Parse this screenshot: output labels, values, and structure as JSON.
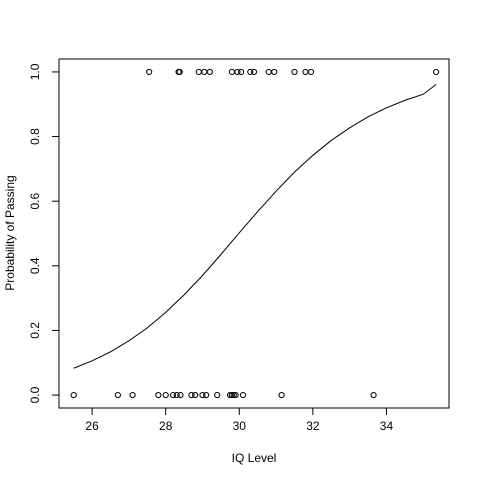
{
  "chart_data": {
    "type": "scatter",
    "title": "",
    "xlabel": "IQ Level",
    "ylabel": "Probability of Passing",
    "xlim": [
      25.1,
      35.7
    ],
    "ylim": [
      -0.04,
      1.04
    ],
    "x_ticks": [
      26,
      28,
      30,
      32,
      34
    ],
    "x_tick_labels": [
      "26",
      "28",
      "30",
      "32",
      "34"
    ],
    "y_ticks": [
      0.0,
      0.2,
      0.4,
      0.6,
      0.8,
      1.0
    ],
    "y_tick_labels": [
      "0.0",
      "0.2",
      "0.4",
      "0.6",
      "0.8",
      "1.0"
    ],
    "grid": false,
    "points": {
      "x": [
        25.5,
        26.7,
        27.1,
        27.8,
        28.0,
        28.2,
        28.3,
        28.4,
        28.7,
        28.8,
        29.0,
        29.1,
        29.4,
        29.75,
        29.8,
        29.85,
        29.9,
        30.1,
        31.15,
        33.65,
        27.55,
        28.35,
        28.38,
        28.9,
        29.05,
        29.2,
        29.8,
        29.95,
        30.05,
        30.3,
        30.4,
        30.8,
        30.95,
        31.5,
        31.8,
        31.95,
        35.35
      ],
      "y": [
        0,
        0,
        0,
        0,
        0,
        0,
        0,
        0,
        0,
        0,
        0,
        0,
        0,
        0,
        0,
        0,
        0,
        0,
        0,
        0,
        1,
        1,
        1,
        1,
        1,
        1,
        1,
        1,
        1,
        1,
        1,
        1,
        1,
        1,
        1,
        1,
        1
      ]
    },
    "fitted_curve": {
      "x": [
        25.5,
        26.0,
        26.5,
        27.0,
        27.5,
        28.0,
        28.5,
        29.0,
        29.5,
        30.0,
        30.5,
        31.0,
        31.5,
        32.0,
        32.5,
        33.0,
        33.5,
        34.0,
        34.5,
        35.0,
        35.35
      ],
      "y": [
        0.083,
        0.106,
        0.134,
        0.168,
        0.208,
        0.256,
        0.31,
        0.37,
        0.435,
        0.502,
        0.568,
        0.631,
        0.69,
        0.742,
        0.788,
        0.827,
        0.861,
        0.889,
        0.912,
        0.931,
        0.961
      ]
    }
  }
}
